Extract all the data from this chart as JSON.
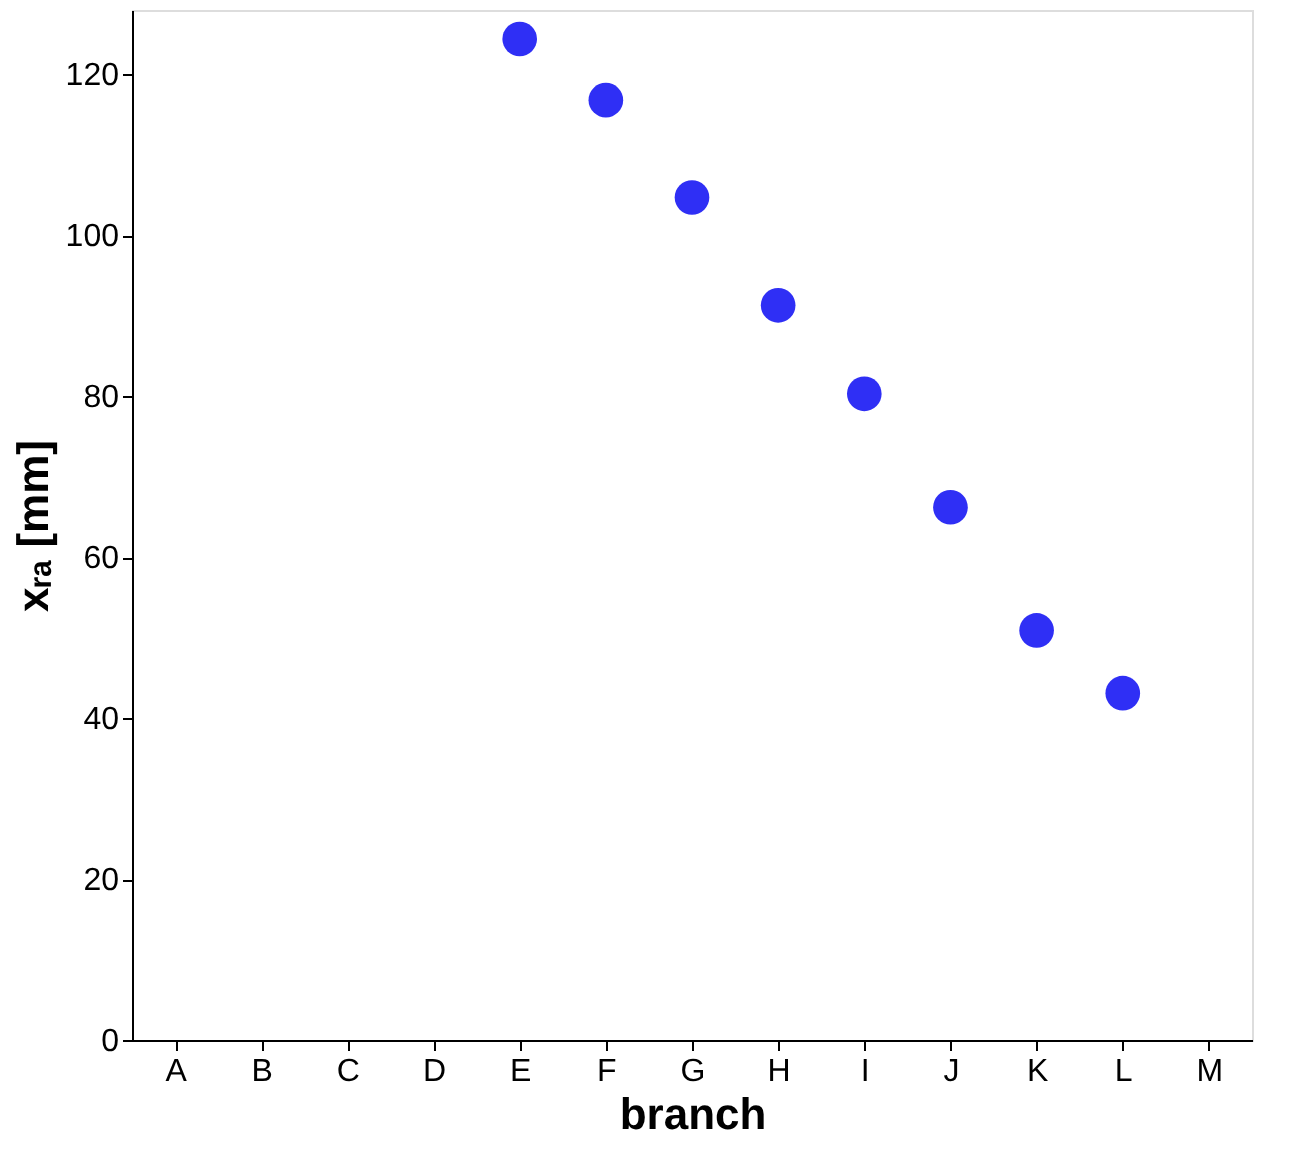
{
  "chart_data": {
    "type": "scatter",
    "xlabel": "branch",
    "ylabel": "xᵣₐ [mm]",
    "categories": [
      "A",
      "B",
      "C",
      "D",
      "E",
      "F",
      "G",
      "H",
      "I",
      "J",
      "K",
      "L",
      "M"
    ],
    "series": [
      {
        "color": "#2f2ff5",
        "values": [
          null,
          null,
          null,
          null,
          124.4,
          116.8,
          104.7,
          91.3,
          80.3,
          66.2,
          50.9,
          43.1,
          null
        ]
      }
    ],
    "ylim": [
      0,
      128
    ],
    "yticks": [
      0,
      20,
      40,
      60,
      80,
      100,
      120
    ],
    "grid": false,
    "legend": false,
    "marker": "circle"
  }
}
